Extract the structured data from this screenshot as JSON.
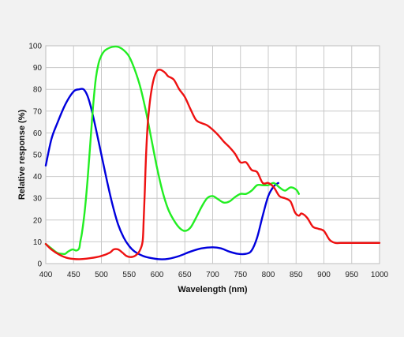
{
  "chart_data": {
    "type": "line",
    "xlabel": "Wavelength (nm)",
    "ylabel": "Relative response (%)",
    "xlim": [
      400,
      1000
    ],
    "ylim": [
      0,
      100
    ],
    "xticks": [
      400,
      450,
      500,
      550,
      600,
      650,
      700,
      750,
      800,
      850,
      900,
      950,
      1000
    ],
    "yticks": [
      0,
      10,
      20,
      30,
      40,
      50,
      60,
      70,
      80,
      90,
      100
    ],
    "grid": true,
    "series": [
      {
        "color": "#0000dd",
        "x": [
          400,
          410,
          420,
          435,
          450,
          460,
          468,
          475,
          482,
          490,
          500,
          510,
          520,
          530,
          540,
          550,
          560,
          575,
          590,
          605,
          620,
          640,
          660,
          680,
          700,
          715,
          730,
          745,
          760,
          770,
          780,
          790,
          800,
          810,
          818
        ],
        "y": [
          45,
          57,
          64,
          73,
          79,
          80,
          80,
          77,
          71,
          62,
          50,
          38,
          27,
          18,
          12,
          8,
          5.5,
          3.5,
          2.5,
          2,
          2.2,
          3.5,
          5.5,
          7,
          7.5,
          7,
          5.5,
          4.5,
          4.5,
          6,
          12,
          22,
          31,
          35.5,
          37
        ]
      },
      {
        "color": "#22ee22",
        "x": [
          400,
          410,
          420,
          428,
          435,
          440,
          448,
          455,
          460,
          462,
          465,
          470,
          475,
          480,
          485,
          490,
          495,
          500,
          505,
          510,
          520,
          530,
          540,
          550,
          560,
          570,
          580,
          590,
          600,
          610,
          620,
          630,
          640,
          650,
          660,
          670,
          680,
          690,
          700,
          710,
          720,
          730,
          740,
          750,
          760,
          770,
          780,
          790,
          800,
          810,
          820,
          830,
          840,
          850,
          855
        ],
        "y": [
          9,
          7,
          5,
          4.5,
          4.5,
          5.5,
          6.5,
          6,
          7,
          10,
          14,
          24,
          38,
          55,
          72,
          85,
          92,
          95.5,
          97.5,
          98.5,
          99.5,
          99.5,
          98,
          95,
          89,
          81,
          70,
          57,
          44,
          33,
          25,
          20,
          16.5,
          15,
          16.5,
          21,
          26,
          30,
          31,
          29.5,
          28,
          28.5,
          30.5,
          32,
          32,
          33.5,
          36,
          36,
          36,
          37,
          35,
          33.5,
          35,
          34,
          32
        ]
      },
      {
        "color": "#ee1111",
        "x": [
          400,
          410,
          425,
          440,
          460,
          480,
          500,
          515,
          522,
          530,
          538,
          545,
          552,
          560,
          568,
          574,
          576,
          578,
          580,
          583,
          587,
          591,
          595,
          600,
          605,
          610,
          615,
          620,
          630,
          640,
          650,
          660,
          670,
          680,
          690,
          700,
          710,
          720,
          730,
          740,
          750,
          760,
          770,
          780,
          790,
          800,
          810,
          820,
          830,
          840,
          848,
          855,
          860,
          870,
          880,
          890,
          900,
          910,
          920,
          930,
          940,
          950,
          960,
          970,
          980,
          990,
          1000
        ],
        "y": [
          9,
          6.5,
          4,
          2.5,
          2,
          2.5,
          3.5,
          5,
          6.5,
          6.5,
          5,
          3.5,
          3,
          3.5,
          5.5,
          10,
          20,
          33,
          48,
          63,
          74,
          81,
          85.5,
          88.5,
          89,
          88.5,
          87.5,
          86,
          84.5,
          80,
          76.5,
          71,
          66,
          64.5,
          63.5,
          61.5,
          59,
          56,
          53.5,
          50.5,
          46.5,
          46.5,
          43,
          42,
          37,
          37,
          35,
          31,
          30,
          28.5,
          23.5,
          22,
          23,
          21,
          17,
          16,
          15,
          11,
          9.5,
          9.5,
          9.5,
          9.5,
          9.5,
          9.5,
          9.5,
          9.5,
          9.5
        ]
      }
    ]
  }
}
